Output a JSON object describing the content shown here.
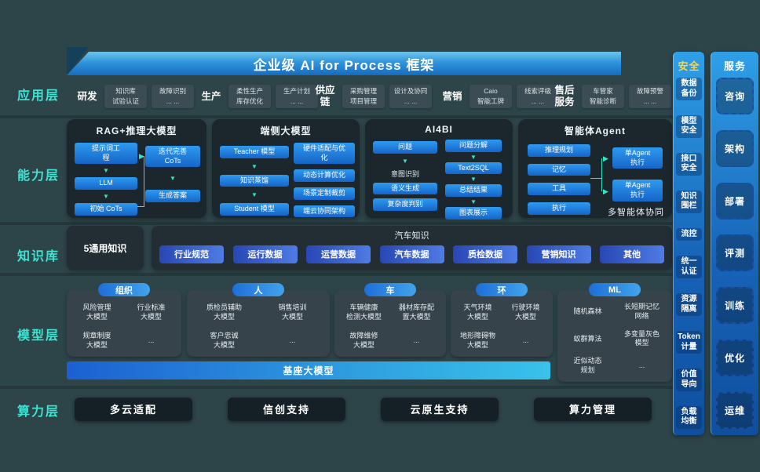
{
  "banner": {
    "title": "企业级 AI for Process 框架"
  },
  "layers": {
    "application": {
      "label": "应用层",
      "groups": [
        {
          "name": "研发",
          "boxes": [
            [
              "知识库",
              "试验认证"
            ],
            [
              "故障识别",
              "... ..."
            ]
          ]
        },
        {
          "name": "生产",
          "boxes": [
            [
              "柔性生产",
              "库存优化"
            ],
            [
              "生产计划",
              "... ..."
            ]
          ]
        },
        {
          "name": "供应链",
          "boxes": [
            [
              "采购管理",
              "项目管理"
            ],
            [
              "设计及协同",
              "... ..."
            ]
          ]
        },
        {
          "name": "营销",
          "boxes": [
            [
              "Caio",
              "智能工牌"
            ],
            [
              "线索评级",
              "... ..."
            ]
          ]
        },
        {
          "name": "售后服务",
          "boxes": [
            [
              "车管家",
              "智能诊断"
            ],
            [
              "故障预警",
              "... ..."
            ]
          ]
        }
      ]
    },
    "capability": {
      "label": "能力层",
      "boxes": [
        {
          "kind": "rag",
          "title": "RAG+推理大模型",
          "flow_left": [
            "提示词工\n程",
            "LLM",
            "初始 CoTs"
          ],
          "flow_right": [
            "迭代完善\nCoTs",
            "生成答案"
          ]
        },
        {
          "kind": "edge",
          "title": "端侧大模型",
          "flow_left": [
            "Teacher 模型",
            "知识蒸馏",
            "Student 模型"
          ],
          "flow_right": [
            "硬件适配与优\n化",
            "动态计算优化",
            "场景定制裁剪",
            "端云协同架构"
          ]
        },
        {
          "kind": "bi",
          "title": "AI4BI",
          "flow_left": [
            "问题",
            "意图识别",
            "语义生成",
            "复杂度判别"
          ],
          "flow_right": [
            "问题分解",
            "Text2SQL",
            "总结结果",
            "图表展示"
          ]
        },
        {
          "kind": "agent",
          "title": "智能体Agent",
          "flow_left": [
            "推理规划",
            "记忆",
            "工具",
            "执行"
          ],
          "flow_right": [
            "单Agent\n执行",
            "单Agent\n执行"
          ],
          "caption": "多智能体协同"
        }
      ]
    },
    "knowledge": {
      "label": "知识库",
      "general": "5通用知识",
      "domain_title": "汽车知识",
      "pills": [
        "行业规范",
        "运行数据",
        "运营数据",
        "汽车数据",
        "质检数据",
        "营销知识",
        "其他"
      ]
    },
    "model": {
      "label": "模型层",
      "foundation": "基座大模型",
      "groups": [
        {
          "pill": "组织",
          "items": [
            "风险管理\n大模型",
            "行业标准\n大模型",
            "规章制度\n大模型",
            "..."
          ]
        },
        {
          "pill": "人",
          "items": [
            "质检员辅助\n大模型",
            "销售培训\n大模型",
            "客户忠诚\n大模型",
            "..."
          ]
        },
        {
          "pill": "车",
          "items": [
            "车辆健康\n检测大模型",
            "器材库存配\n置大模型",
            "故障维修\n大模型",
            "..."
          ]
        },
        {
          "pill": "环",
          "items": [
            "天气环境\n大模型",
            "行驶环境\n大模型",
            "地形障碍物\n大模型",
            "..."
          ]
        },
        {
          "pill": "ML",
          "items": [
            "随机森林",
            "长短期记忆\n网络",
            "蚁群算法",
            "多变量灰色\n模型",
            "近似动态\n规划",
            "..."
          ]
        }
      ]
    },
    "compute": {
      "label": "算力层",
      "items": [
        "多云适配",
        "信创支持",
        "云原生支持",
        "算力管理"
      ]
    }
  },
  "security": {
    "title": "安全",
    "items": [
      "数据\n备份",
      "模型\n安全",
      "接口\n安全",
      "知识\n围栏",
      "流控",
      "统一\n认证",
      "资源\n隔离",
      "Token\n计量",
      "价值\n导向",
      "负载\n均衡"
    ]
  },
  "service": {
    "title": "服务",
    "items": [
      "咨询",
      "架构",
      "部署",
      "评测",
      "训练",
      "优化",
      "运维"
    ]
  },
  "colors": {
    "accent_cyan": "#3ce4d2",
    "security_header_yellow": "#ffd43d",
    "node_blue": "#1e7fd6",
    "banner_blue": "#2f95dc",
    "foundation_from": "#1c60d2",
    "foundation_to": "#38c2ea"
  }
}
